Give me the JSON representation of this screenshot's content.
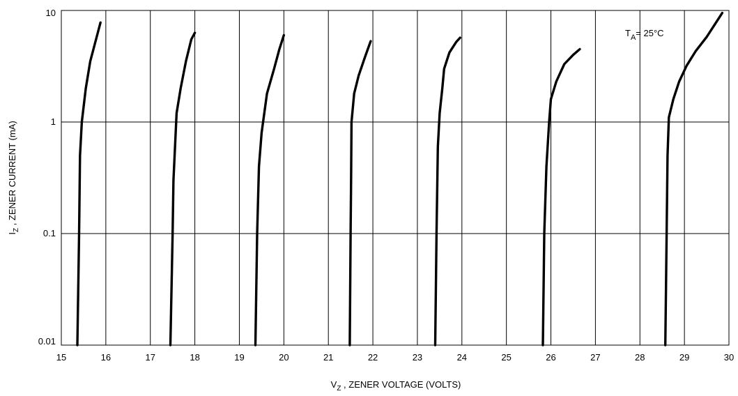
{
  "chart_data": {
    "type": "line",
    "y_scale": "log",
    "grid": true,
    "xlim": [
      15,
      30
    ],
    "ylim": [
      0.01,
      10
    ],
    "x_ticks": [
      "15",
      "16",
      "17",
      "18",
      "19",
      "20",
      "21",
      "22",
      "23",
      "24",
      "25",
      "26",
      "27",
      "28",
      "29",
      "30"
    ],
    "y_ticks": [
      "0.01",
      "0.1",
      "1",
      "10"
    ],
    "xlabel": {
      "main": "V",
      "sub": "Z",
      "rest": " , ZENER VOLTAGE (VOLTS)"
    },
    "ylabel": {
      "main": "I",
      "sub": "Z",
      "rest": " , ZENER CURRENT   (mA)"
    },
    "annotation": {
      "main": "T",
      "sub": "A",
      "rest": "=  25°C"
    },
    "line_color": "#000000",
    "series": [
      {
        "points": [
          [
            15.36,
            0.01
          ],
          [
            15.4,
            0.1
          ],
          [
            15.42,
            0.5
          ],
          [
            15.46,
            1.0
          ],
          [
            15.55,
            2.0
          ],
          [
            15.65,
            3.5
          ],
          [
            15.78,
            5.5
          ],
          [
            15.88,
            7.8
          ]
        ]
      },
      {
        "points": [
          [
            17.45,
            0.01
          ],
          [
            17.5,
            0.1
          ],
          [
            17.52,
            0.3
          ],
          [
            17.59,
            1.2
          ],
          [
            17.68,
            2.0
          ],
          [
            17.8,
            3.5
          ],
          [
            17.92,
            5.5
          ],
          [
            18.0,
            6.3
          ]
        ]
      },
      {
        "points": [
          [
            19.36,
            0.01
          ],
          [
            19.4,
            0.1
          ],
          [
            19.44,
            0.4
          ],
          [
            19.5,
            0.8
          ],
          [
            19.62,
            1.8
          ],
          [
            19.78,
            3.0
          ],
          [
            19.9,
            4.5
          ],
          [
            20.0,
            6.0
          ]
        ]
      },
      {
        "points": [
          [
            21.48,
            0.01
          ],
          [
            21.5,
            0.1
          ],
          [
            21.51,
            0.3
          ],
          [
            21.52,
            1.0
          ],
          [
            21.58,
            1.8
          ],
          [
            21.68,
            2.6
          ],
          [
            21.82,
            3.8
          ],
          [
            21.95,
            5.3
          ]
        ]
      },
      {
        "points": [
          [
            23.4,
            0.01
          ],
          [
            23.43,
            0.1
          ],
          [
            23.46,
            0.6
          ],
          [
            23.5,
            1.2
          ],
          [
            23.56,
            2.0
          ],
          [
            23.6,
            3.0
          ],
          [
            23.72,
            4.2
          ],
          [
            23.87,
            5.2
          ],
          [
            23.96,
            5.7
          ]
        ]
      },
      {
        "points": [
          [
            25.82,
            0.01
          ],
          [
            25.85,
            0.1
          ],
          [
            25.9,
            0.4
          ],
          [
            25.96,
            1.0
          ],
          [
            26.0,
            1.6
          ],
          [
            26.12,
            2.3
          ],
          [
            26.3,
            3.3
          ],
          [
            26.5,
            4.0
          ],
          [
            26.65,
            4.5
          ]
        ]
      },
      {
        "points": [
          [
            28.57,
            0.01
          ],
          [
            28.6,
            0.1
          ],
          [
            28.62,
            0.5
          ],
          [
            28.65,
            1.1
          ],
          [
            28.75,
            1.6
          ],
          [
            28.88,
            2.3
          ],
          [
            29.05,
            3.2
          ],
          [
            29.25,
            4.3
          ],
          [
            29.5,
            5.8
          ],
          [
            29.85,
            9.5
          ]
        ]
      }
    ]
  }
}
